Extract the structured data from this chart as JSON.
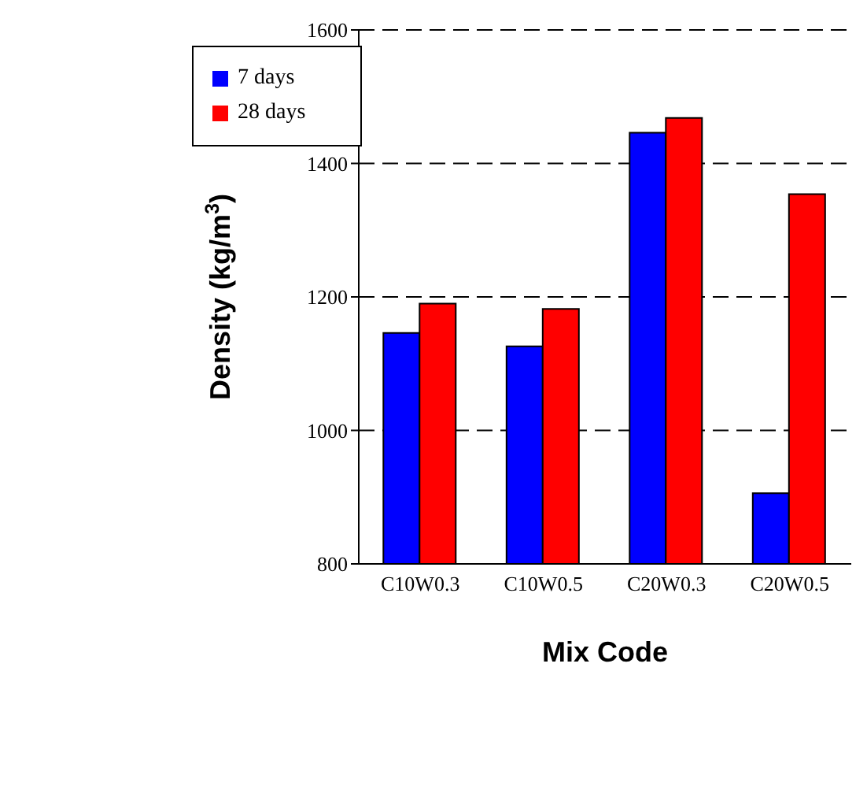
{
  "chart_data": {
    "type": "bar",
    "xlabel": "Mix Code",
    "ylabel": "Density (kg/m$^{3}$)",
    "categories": [
      "C10W0.3",
      "C10W0.5",
      "C20W0.3",
      "C20W0.5"
    ],
    "series": [
      {
        "name": "7 days",
        "color": "#0000ff",
        "values": [
          1146,
          1126,
          1446,
          906
        ]
      },
      {
        "name": "28 days",
        "color": "#ff0000",
        "values": [
          1190,
          1182,
          1468,
          1354
        ]
      }
    ],
    "ylim": [
      800,
      1600
    ],
    "yticks": [
      800,
      1000,
      1200,
      1400,
      1600
    ],
    "grid": "y",
    "legend": "top left"
  }
}
